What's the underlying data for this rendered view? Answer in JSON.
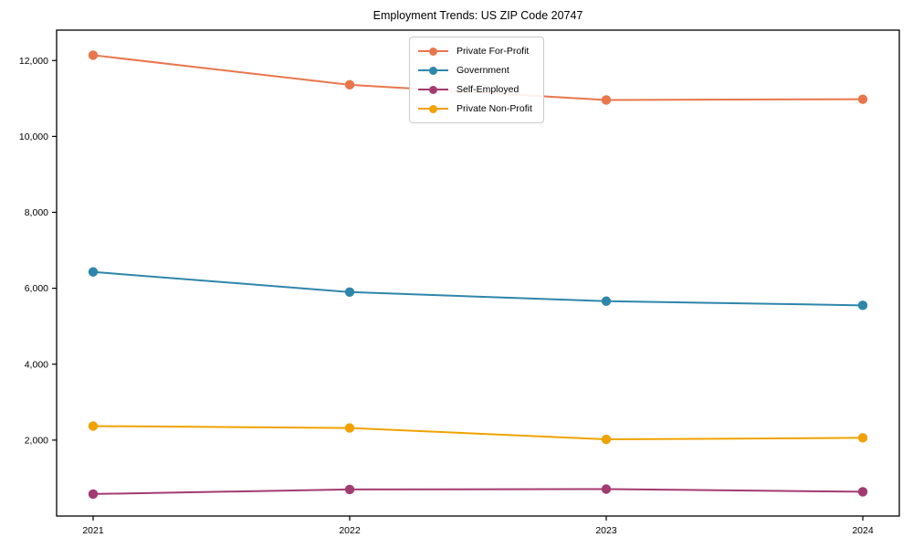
{
  "figure": {
    "title": "Employment Trends: US ZIP Code 20747"
  },
  "chart_data": {
    "type": "line",
    "title": "Employment Trends: US ZIP Code 20747",
    "xlabel": "",
    "ylabel": "",
    "x": [
      2021,
      2022,
      2023,
      2024
    ],
    "ylim": [
      0,
      12800
    ],
    "yticks": [
      2000,
      4000,
      6000,
      8000,
      10000,
      12000
    ],
    "grid": false,
    "legend_position": "upper center",
    "series": [
      {
        "name": "Private For-Profit",
        "color": "#E8764C",
        "values": [
          12140,
          11360,
          10960,
          10980
        ]
      },
      {
        "name": "Government",
        "color": "#2E86AB",
        "values": [
          6430,
          5900,
          5660,
          5550
        ]
      },
      {
        "name": "Self-Employed",
        "color": "#A23B72",
        "values": [
          580,
          700,
          710,
          640
        ]
      },
      {
        "name": "Private Non-Profit",
        "color": "#F0A202",
        "values": [
          2370,
          2320,
          2020,
          2060
        ]
      }
    ]
  }
}
